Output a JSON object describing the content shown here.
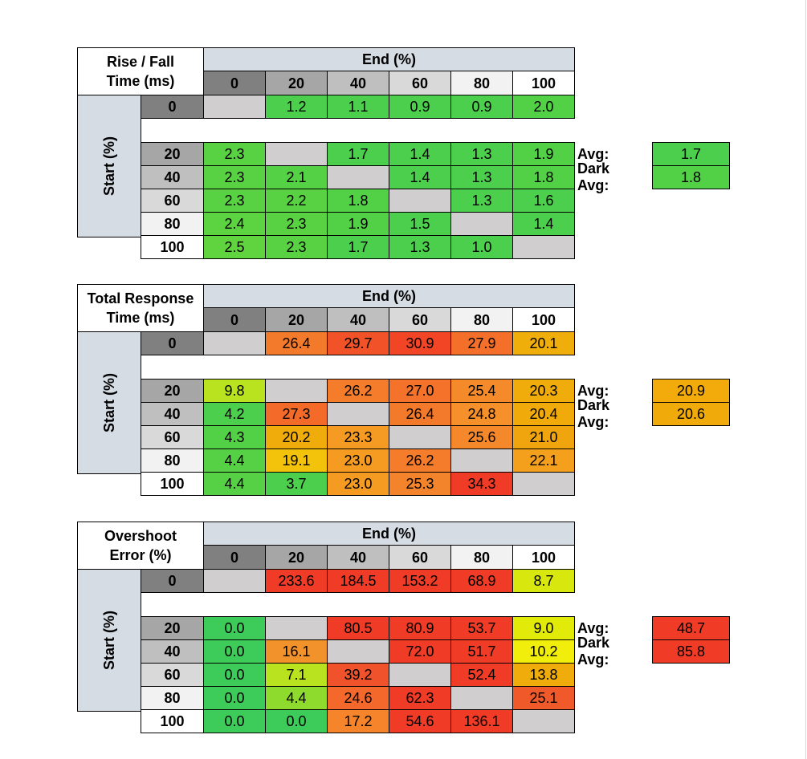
{
  "chart_data": [
    {
      "type": "table",
      "title": [
        "Rise / Fall",
        "Time (ms)"
      ],
      "col_header": "End (%)",
      "row_header": "Start (%)",
      "columns": [
        "0",
        "20",
        "40",
        "60",
        "80",
        "100"
      ],
      "rows": [
        "0",
        "20",
        "40",
        "60",
        "80",
        "100"
      ],
      "values": [
        [
          null,
          "1.2",
          "1.1",
          "0.9",
          "0.9",
          "2.0"
        ],
        [
          "2.3",
          null,
          "1.7",
          "1.4",
          "1.3",
          "1.9"
        ],
        [
          "2.3",
          "2.1",
          null,
          "1.4",
          "1.3",
          "1.8"
        ],
        [
          "2.3",
          "2.2",
          "1.8",
          null,
          "1.3",
          "1.6"
        ],
        [
          "2.4",
          "2.3",
          "1.9",
          "1.5",
          null,
          "1.4"
        ],
        [
          "2.5",
          "2.3",
          "1.7",
          "1.3",
          "1.0",
          null
        ]
      ],
      "colors": [
        [
          "#d0cece",
          "#4ccf4c",
          "#4ccf4c",
          "#4ccf4c",
          "#4ccf4c",
          "#52d147"
        ],
        [
          "#58d243",
          null,
          "#4ccf4c",
          "#4ccf4c",
          "#4ccf4c",
          "#52d147"
        ],
        [
          "#58d243",
          "#55d145",
          null,
          "#4ccf4c",
          "#4ccf4c",
          "#52d147"
        ],
        [
          "#58d243",
          "#58d243",
          "#52d147",
          null,
          "#4ccf4c",
          "#4ccf4c"
        ],
        [
          "#5cd341",
          "#58d243",
          "#52d147",
          "#4ccf4c",
          null,
          "#4ccf4c"
        ],
        [
          "#60d43e",
          "#58d243",
          "#4ccf4c",
          "#4ccf4c",
          "#4ccf4c",
          null
        ]
      ],
      "avg_label": "Avg:",
      "avg_value": "1.7",
      "avg_color": "#4ccf4c",
      "dark_avg_label": "Dark Avg:",
      "dark_avg_value": "1.8",
      "dark_avg_color": "#52d147"
    },
    {
      "type": "table",
      "title": [
        "Total Response",
        "Time (ms)"
      ],
      "col_header": "End (%)",
      "row_header": "Start (%)",
      "columns": [
        "0",
        "20",
        "40",
        "60",
        "80",
        "100"
      ],
      "rows": [
        "0",
        "20",
        "40",
        "60",
        "80",
        "100"
      ],
      "values": [
        [
          null,
          "26.4",
          "29.7",
          "30.9",
          "27.9",
          "20.1"
        ],
        [
          "9.8",
          null,
          "26.2",
          "27.0",
          "25.4",
          "20.3"
        ],
        [
          "4.2",
          "27.3",
          null,
          "26.4",
          "24.8",
          "20.4"
        ],
        [
          "4.3",
          "20.2",
          "23.3",
          null,
          "25.6",
          "21.0"
        ],
        [
          "4.4",
          "19.1",
          "23.0",
          "26.2",
          null,
          "22.1"
        ],
        [
          "4.4",
          "3.7",
          "23.0",
          "25.3",
          "34.3",
          null
        ]
      ],
      "colors": [
        [
          null,
          "#f47a2b",
          "#f25228",
          "#f24526",
          "#f4702a",
          "#f0ae0a"
        ],
        [
          "#b8e31e",
          null,
          "#f47c2b",
          "#f4722a",
          "#f58a2a",
          "#f0ac0a"
        ],
        [
          "#4ccf4c",
          "#f46a29",
          null,
          "#f47a2b",
          "#f5902a",
          "#f0ab0a"
        ],
        [
          "#52d147",
          "#f0ac0a",
          "#f59a22",
          null,
          "#f5882a",
          "#f0a50e"
        ],
        [
          "#56d145",
          "#f2c30a",
          "#f59b22",
          "#f47c2b",
          null,
          "#f5a01c"
        ],
        [
          "#56d145",
          "#4ccf4c",
          "#f59b22",
          "#f4842b",
          "#f03c26",
          null
        ]
      ],
      "avg_label": "Avg:",
      "avg_value": "20.9",
      "avg_color": "#f2ab0a",
      "dark_avg_label": "Dark Avg:",
      "dark_avg_value": "20.6",
      "dark_avg_color": "#f0ab0a"
    },
    {
      "type": "table",
      "title": [
        "Overshoot",
        "Error (%)"
      ],
      "col_header": "End (%)",
      "row_header": "Start (%)",
      "columns": [
        "0",
        "20",
        "40",
        "60",
        "80",
        "100"
      ],
      "rows": [
        "0",
        "20",
        "40",
        "60",
        "80",
        "100"
      ],
      "values": [
        [
          null,
          "233.6",
          "184.5",
          "153.2",
          "68.9",
          "8.7"
        ],
        [
          "0.0",
          null,
          "80.5",
          "80.9",
          "53.7",
          "9.0"
        ],
        [
          "0.0",
          "16.1",
          null,
          "72.0",
          "51.7",
          "10.2"
        ],
        [
          "0.0",
          "7.1",
          "39.2",
          null,
          "52.4",
          "13.8"
        ],
        [
          "0.0",
          "4.4",
          "24.6",
          "62.3",
          null,
          "25.1"
        ],
        [
          "0.0",
          "0.0",
          "17.2",
          "54.6",
          "136.1",
          null
        ]
      ],
      "colors": [
        [
          null,
          "#f03c26",
          "#f03c26",
          "#f03c26",
          "#f03c26",
          "#d8e80e"
        ],
        [
          "#3dcb5a",
          null,
          "#f03c26",
          "#f03c26",
          "#f03c26",
          "#e2ea0a"
        ],
        [
          "#3dcb5a",
          "#f2922a",
          null,
          "#f03c26",
          "#f03c26",
          "#f0ee0a"
        ],
        [
          "#3dcb5a",
          "#b8e31e",
          "#f0522c",
          null,
          "#f03c26",
          "#f0ac0a"
        ],
        [
          "#3dcb5a",
          "#8edb2e",
          "#f5682c",
          "#f03c26",
          null,
          "#f05a2a"
        ],
        [
          "#3dcb5a",
          "#3dcb5a",
          "#f5842a",
          "#f03c26",
          "#f03c26",
          null
        ]
      ],
      "avg_label": "Avg:",
      "avg_value": "48.7",
      "avg_color": "#f03c26",
      "dark_avg_label": "Dark Avg:",
      "dark_avg_value": "85.8",
      "dark_avg_color": "#f03c26"
    }
  ],
  "style": {
    "diagonal_color": "#d0cece",
    "col_header_fills": [
      "#808080",
      "#a6a6a6",
      "#bfbfbf",
      "#d9d9d9",
      "#f2f2f2",
      "#ffffff"
    ],
    "row_header_fills": [
      "#808080",
      "#a6a6a6",
      "#bfbfbf",
      "#d9d9d9",
      "#f2f2f2",
      "#ffffff"
    ],
    "header_band_color": "#d5dce4"
  }
}
